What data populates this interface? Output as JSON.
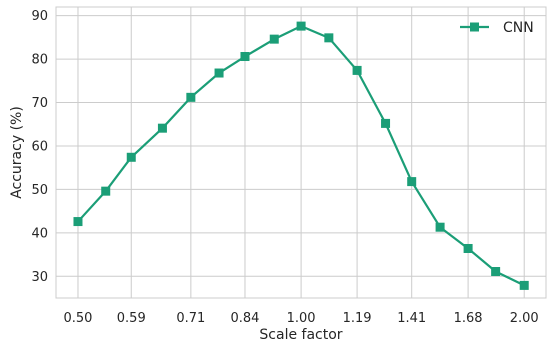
{
  "chart_data": {
    "type": "line",
    "title": "",
    "xlabel": "Scale factor",
    "ylabel": "Accuracy (%)",
    "x_tick_labels": [
      "0.50",
      "0.59",
      "0.71",
      "0.84",
      "1.00",
      "1.19",
      "1.41",
      "1.68",
      "2.00"
    ],
    "x": [
      0.5,
      0.545,
      0.59,
      0.65,
      0.71,
      0.775,
      0.84,
      0.92,
      1.0,
      1.09,
      1.19,
      1.3,
      1.41,
      1.54,
      1.68,
      1.83,
      2.0
    ],
    "x_scale": "log",
    "xlim": [
      0.467,
      2.14
    ],
    "ylim": [
      25,
      92
    ],
    "y_ticks": [
      30,
      40,
      50,
      60,
      70,
      80,
      90
    ],
    "grid": true,
    "legend_position": "top-right",
    "series": [
      {
        "name": "CNN",
        "color": "#1b9e77",
        "marker": "square",
        "values": [
          42.6,
          49.6,
          57.4,
          64.1,
          71.2,
          76.8,
          80.6,
          84.6,
          87.6,
          84.9,
          77.4,
          65.2,
          51.8,
          41.3,
          36.4,
          31.1,
          27.9
        ]
      }
    ]
  }
}
